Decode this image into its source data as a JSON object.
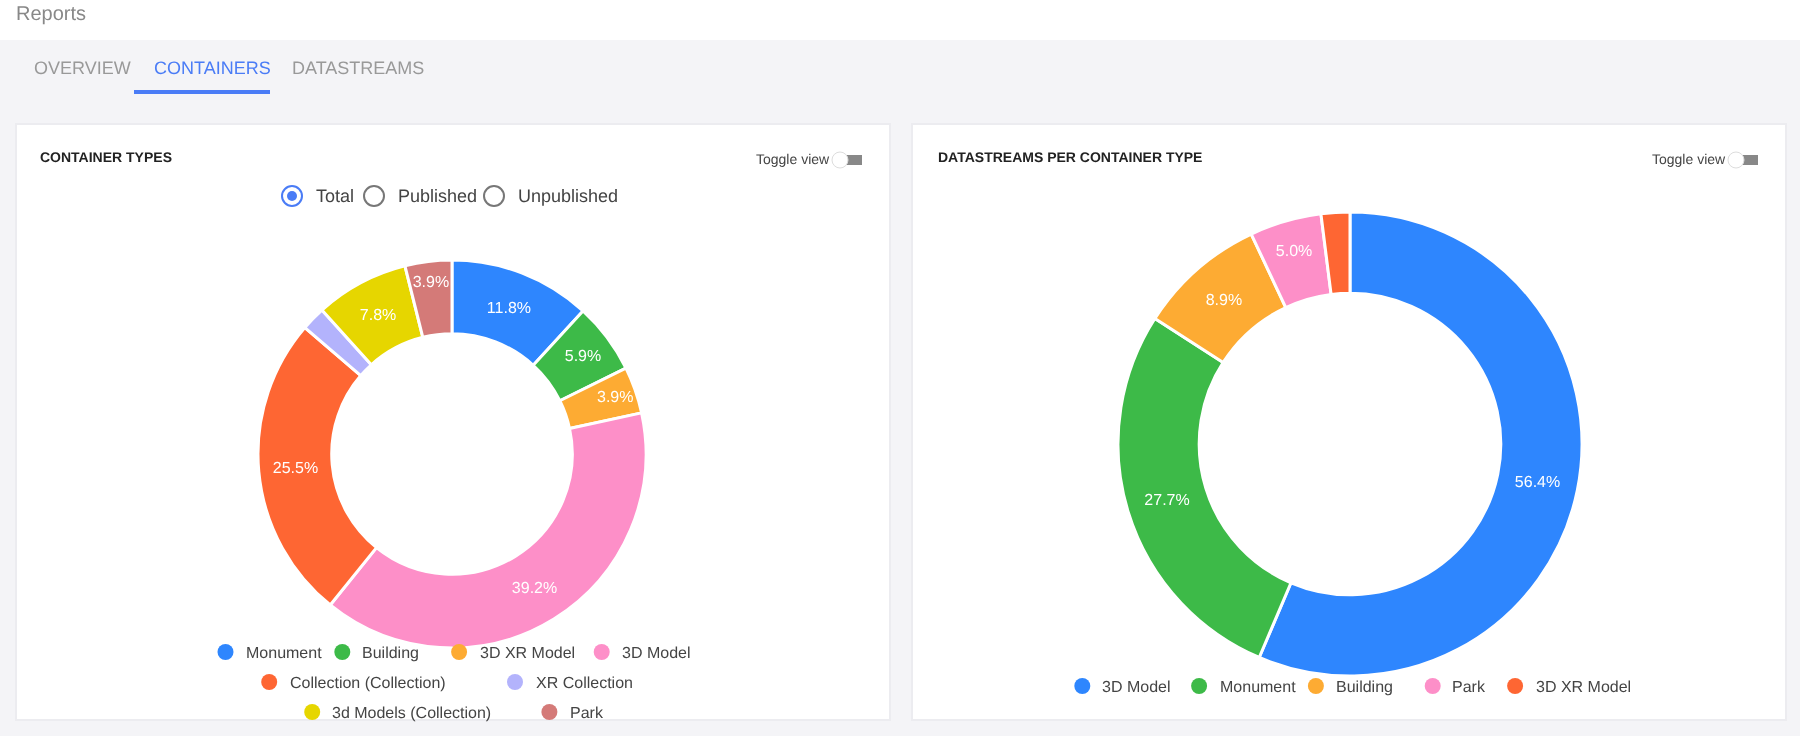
{
  "chart_data": [
    {
      "type": "donut",
      "title": "CONTAINER TYPES",
      "legend": "bottom",
      "categories": [
        "Monument",
        "Building",
        "3D XR Model",
        "3D Model",
        "Collection (Collection)",
        "XR Collection",
        "3d Models (Collection)",
        "Park"
      ],
      "values": [
        11.8,
        5.9,
        3.9,
        39.2,
        25.5,
        2.0,
        7.8,
        3.9
      ],
      "value_labels": [
        "11.8%",
        "5.9%",
        "3.9%",
        "39.2%",
        "25.5%",
        null,
        "7.8%",
        "3.9%"
      ],
      "colors": [
        "#2e86fe",
        "#3dba48",
        "#fdab33",
        "#fd8fc8",
        "#fe6633",
        "#b3b3fc",
        "#e6d600",
        "#d47a78"
      ],
      "annotations": [
        "Reports",
        "OVERVIEW",
        "CONTAINERS",
        "DATASTREAMS",
        "Total",
        "Published",
        "Unpublished",
        "Toggle view"
      ]
    },
    {
      "type": "donut",
      "title": "DATASTREAMS PER CONTAINER TYPE",
      "legend": "bottom",
      "categories": [
        "3D Model",
        "Monument",
        "Building",
        "Park",
        "3D XR Model"
      ],
      "values": [
        56.4,
        27.7,
        8.9,
        5.0,
        2.0
      ],
      "value_labels": [
        "56.4%",
        "27.7%",
        "8.9%",
        "5.0%",
        null
      ],
      "colors": [
        "#2e86fe",
        "#3dba48",
        "#fdab33",
        "#fd8fc8",
        "#fe6633"
      ],
      "annotations": [
        "Toggle view"
      ]
    }
  ]
}
